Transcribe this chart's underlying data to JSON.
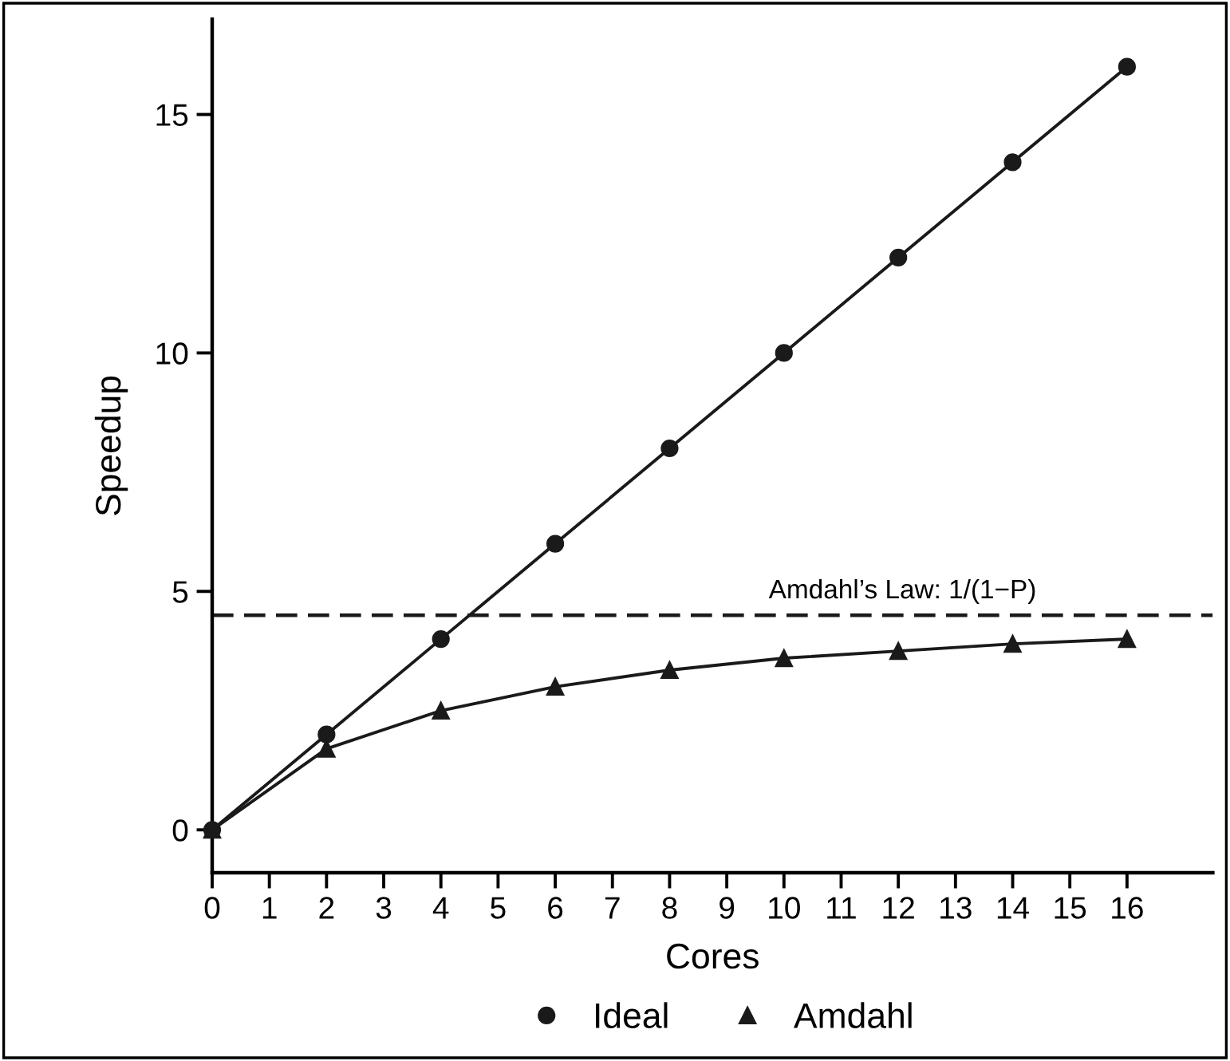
{
  "chart_data": {
    "type": "line",
    "xlabel": "Cores",
    "ylabel": "Speedup",
    "x": [
      0,
      2,
      4,
      6,
      8,
      10,
      12,
      14,
      16
    ],
    "series": [
      {
        "name": "Ideal",
        "color": "#1a1a1a",
        "marker": "circle",
        "values": [
          0,
          2,
          4,
          6,
          8,
          10,
          12,
          14,
          16
        ]
      },
      {
        "name": "Amdahl",
        "color": "#1a1a1a",
        "marker": "triangle",
        "values": [
          0,
          1.7,
          2.5,
          3.0,
          3.35,
          3.6,
          3.75,
          3.9,
          4.0
        ]
      }
    ],
    "xlim": [
      0,
      17.5
    ],
    "xticks": [
      0,
      1,
      2,
      3,
      4,
      5,
      6,
      7,
      8,
      9,
      10,
      11,
      12,
      13,
      14,
      15,
      16
    ],
    "ylim": [
      -0.9,
      17
    ],
    "yticks": [
      0,
      5,
      10,
      15
    ],
    "ref_lines": [
      {
        "axis": "y",
        "value": 4.5,
        "color": "#1a1a1a",
        "line_style": "dashed"
      }
    ],
    "annotations": [
      "Amdahl’s Law: 1/(1−P)"
    ],
    "grid": false,
    "legend": "bottom",
    "line_style": "solid"
  }
}
